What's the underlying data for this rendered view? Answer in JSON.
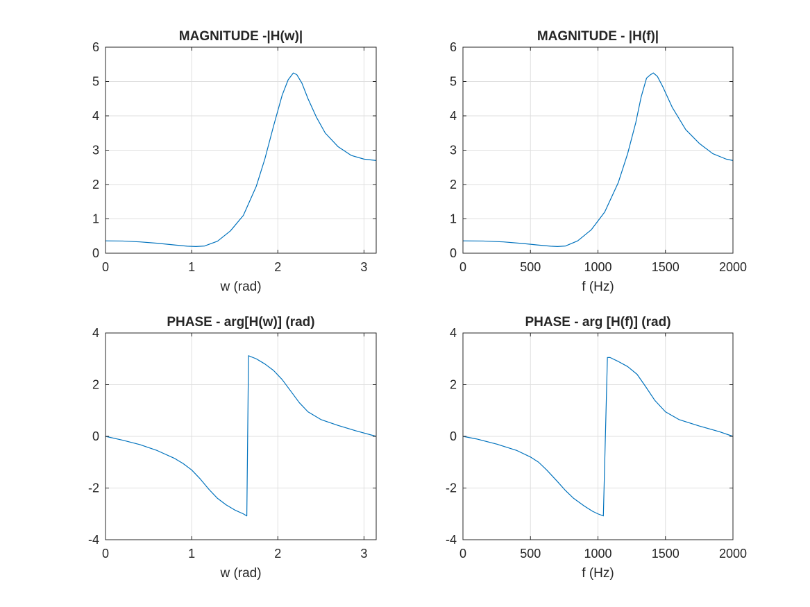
{
  "colors": {
    "line": "#0072bd",
    "text": "#262626",
    "grid": "#dfdfdf"
  },
  "chart_data": [
    {
      "type": "line",
      "title": "MAGNITUDE -|H(w)|",
      "xlabel": "w (rad)",
      "ylabel": "",
      "xlim": [
        0,
        3.1416
      ],
      "ylim": [
        0,
        6
      ],
      "xticks": [
        0,
        1,
        2,
        3
      ],
      "xtick_labels": [
        "0",
        "1",
        "2",
        "3"
      ],
      "yticks": [
        0,
        1,
        2,
        3,
        4,
        5,
        6
      ],
      "ytick_labels": [
        "0",
        "1",
        "2",
        "3",
        "4",
        "5",
        "6"
      ],
      "grid": true,
      "series": [
        {
          "x": [
            0,
            0.2,
            0.4,
            0.6,
            0.8,
            0.95,
            1.05,
            1.15,
            1.3,
            1.45,
            1.6,
            1.75,
            1.85,
            1.95,
            2.05,
            2.12,
            2.18,
            2.22,
            2.28,
            2.35,
            2.45,
            2.55,
            2.7,
            2.85,
            3.0,
            3.1416
          ],
          "y": [
            0.36,
            0.355,
            0.33,
            0.29,
            0.24,
            0.205,
            0.195,
            0.21,
            0.35,
            0.65,
            1.1,
            1.95,
            2.75,
            3.7,
            4.6,
            5.05,
            5.25,
            5.2,
            4.95,
            4.5,
            3.95,
            3.5,
            3.1,
            2.85,
            2.74,
            2.7
          ]
        }
      ]
    },
    {
      "type": "line",
      "title": "MAGNITUDE - |H(f)|",
      "xlabel": "f (Hz)",
      "ylabel": "",
      "xlim": [
        0,
        2000
      ],
      "ylim": [
        0,
        6
      ],
      "xticks": [
        0,
        500,
        1000,
        1500,
        2000
      ],
      "xtick_labels": [
        "0",
        "500",
        "1000",
        "1500",
        "2000"
      ],
      "yticks": [
        0,
        1,
        2,
        3,
        4,
        5,
        6
      ],
      "ytick_labels": [
        "0",
        "1",
        "2",
        "3",
        "4",
        "5",
        "6"
      ],
      "grid": true,
      "series": [
        {
          "x": [
            0,
            150,
            300,
            450,
            550,
            650,
            700,
            760,
            850,
            950,
            1050,
            1150,
            1220,
            1280,
            1320,
            1360,
            1390,
            1410,
            1440,
            1480,
            1550,
            1650,
            1750,
            1850,
            1950,
            2000
          ],
          "y": [
            0.36,
            0.355,
            0.33,
            0.28,
            0.24,
            0.205,
            0.195,
            0.21,
            0.36,
            0.68,
            1.2,
            2.05,
            2.9,
            3.8,
            4.55,
            5.1,
            5.2,
            5.25,
            5.15,
            4.85,
            4.25,
            3.6,
            3.2,
            2.9,
            2.74,
            2.7
          ]
        }
      ]
    },
    {
      "type": "line",
      "title": "PHASE - arg[H(w)] (rad)",
      "xlabel": "w (rad)",
      "ylabel": "",
      "xlim": [
        0,
        3.1416
      ],
      "ylim": [
        -4,
        4
      ],
      "xticks": [
        0,
        1,
        2,
        3
      ],
      "xtick_labels": [
        "0",
        "1",
        "2",
        "3"
      ],
      "yticks": [
        -4,
        -2,
        0,
        2,
        4
      ],
      "ytick_labels": [
        "-4",
        "-2",
        "0",
        "2",
        "4"
      ],
      "grid": true,
      "series": [
        {
          "x": [
            0,
            0.2,
            0.4,
            0.6,
            0.8,
            0.9,
            1.0,
            1.1,
            1.2,
            1.3,
            1.4,
            1.5,
            1.6,
            1.64,
            1.66,
            1.75,
            1.85,
            1.95,
            2.05,
            2.15,
            2.25,
            2.35,
            2.5,
            2.7,
            2.9,
            3.1416
          ],
          "y": [
            0,
            -0.15,
            -0.32,
            -0.55,
            -0.85,
            -1.05,
            -1.3,
            -1.65,
            -2.05,
            -2.4,
            -2.65,
            -2.85,
            -3.0,
            -3.08,
            3.12,
            3.0,
            2.8,
            2.55,
            2.2,
            1.75,
            1.3,
            0.95,
            0.65,
            0.42,
            0.22,
            0
          ]
        }
      ]
    },
    {
      "type": "line",
      "title": "PHASE - arg [H(f)] (rad)",
      "xlabel": "f (Hz)",
      "ylabel": "",
      "xlim": [
        0,
        2000
      ],
      "ylim": [
        -4,
        4
      ],
      "xticks": [
        0,
        500,
        1000,
        1500,
        2000
      ],
      "xtick_labels": [
        "0",
        "500",
        "1000",
        "1500",
        "2000"
      ],
      "yticks": [
        -4,
        -2,
        0,
        2,
        4
      ],
      "ytick_labels": [
        "-4",
        "-2",
        "0",
        "2",
        "4"
      ],
      "grid": true,
      "series": [
        {
          "x": [
            0,
            100,
            250,
            400,
            500,
            560,
            620,
            700,
            760,
            820,
            900,
            960,
            1000,
            1040,
            1070,
            1090,
            1150,
            1220,
            1290,
            1350,
            1420,
            1500,
            1600,
            1750,
            1900,
            2000
          ],
          "y": [
            0,
            -0.1,
            -0.3,
            -0.55,
            -0.8,
            -1.0,
            -1.3,
            -1.75,
            -2.1,
            -2.4,
            -2.7,
            -2.9,
            -3.0,
            -3.08,
            3.05,
            3.05,
            2.9,
            2.7,
            2.4,
            1.95,
            1.4,
            0.95,
            0.65,
            0.4,
            0.18,
            0
          ]
        }
      ]
    }
  ]
}
